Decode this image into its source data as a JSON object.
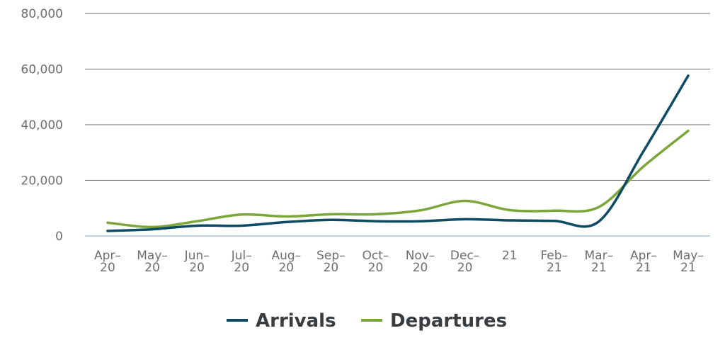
{
  "chart_data": {
    "type": "line",
    "categories": [
      [
        "Apr–",
        "20"
      ],
      [
        "May–",
        "20"
      ],
      [
        "Jun–",
        "20"
      ],
      [
        "Jul–",
        "20"
      ],
      [
        "Aug–",
        "20"
      ],
      [
        "Sep–",
        "20"
      ],
      [
        "Oct–",
        "20"
      ],
      [
        "Nov–",
        "20"
      ],
      [
        "Dec–",
        "20"
      ],
      [
        "21"
      ],
      [
        "Feb–",
        "21"
      ],
      [
        "Mar–",
        "21"
      ],
      [
        "Apr–",
        "21"
      ],
      [
        "May–",
        "21"
      ]
    ],
    "series": [
      {
        "name": "Arrivals",
        "color": "#0d4a63",
        "values": [
          1800,
          2400,
          3700,
          3700,
          5000,
          5800,
          5300,
          5300,
          6000,
          5600,
          5400,
          5200,
          30500,
          57600
        ]
      },
      {
        "name": "Departures",
        "color": "#7aa63a",
        "values": [
          4800,
          3200,
          5300,
          7700,
          7000,
          7800,
          7800,
          9200,
          12600,
          9300,
          9100,
          10400,
          25000,
          37800
        ]
      }
    ],
    "yticks": [
      "80,000",
      "60,000",
      "40,000",
      "20,000",
      "0"
    ],
    "ylim": [
      0,
      80000
    ],
    "grid": true,
    "legend": "bottom-center"
  }
}
